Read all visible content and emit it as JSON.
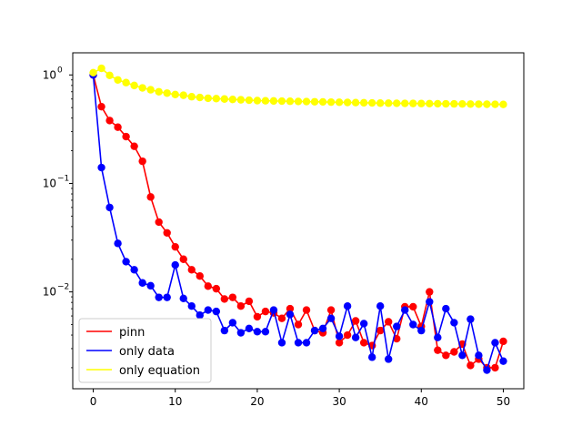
{
  "chart_data": {
    "type": "line",
    "yscale": "log",
    "xlim": [
      -2.5,
      52.5
    ],
    "ylim": [
      0.00128,
      1.6
    ],
    "x_ticks": [
      0,
      10,
      20,
      30,
      40,
      50
    ],
    "y_ticks": [
      0.01,
      0.1,
      1
    ],
    "y_tick_labels": [
      {
        "mantissa": "10",
        "exponent": "−2"
      },
      {
        "mantissa": "10",
        "exponent": "−1"
      },
      {
        "mantissa": "10",
        "exponent": "0"
      }
    ],
    "legend_position": "lower-left",
    "series": [
      {
        "name": "pinn",
        "color": "#ff0000",
        "x": [
          0,
          1,
          2,
          3,
          4,
          5,
          6,
          7,
          8,
          9,
          10,
          11,
          12,
          13,
          14,
          15,
          16,
          17,
          18,
          19,
          20,
          21,
          22,
          23,
          24,
          25,
          26,
          27,
          28,
          29,
          30,
          31,
          32,
          33,
          34,
          35,
          36,
          37,
          38,
          39,
          40,
          41,
          42,
          43,
          44,
          45,
          46,
          47,
          48,
          49,
          50
        ],
        "y": [
          1.0,
          0.51,
          0.38,
          0.33,
          0.27,
          0.22,
          0.16,
          0.075,
          0.044,
          0.035,
          0.026,
          0.02,
          0.016,
          0.014,
          0.0113,
          0.0107,
          0.0086,
          0.0089,
          0.0074,
          0.0082,
          0.0059,
          0.0066,
          0.0064,
          0.0057,
          0.007,
          0.005,
          0.0068,
          0.0044,
          0.0042,
          0.0068,
          0.0034,
          0.004,
          0.0054,
          0.0034,
          0.0032,
          0.0044,
          0.0053,
          0.0037,
          0.0073,
          0.0073,
          0.0048,
          0.01,
          0.0029,
          0.0026,
          0.0028,
          0.0033,
          0.0021,
          0.0024,
          0.002,
          0.002,
          0.0035
        ]
      },
      {
        "name": "only data",
        "color": "#0000ff",
        "x": [
          0,
          1,
          2,
          3,
          4,
          5,
          6,
          7,
          8,
          9,
          10,
          11,
          12,
          13,
          14,
          15,
          16,
          17,
          18,
          19,
          20,
          21,
          22,
          23,
          24,
          25,
          26,
          27,
          28,
          29,
          30,
          31,
          32,
          33,
          34,
          35,
          36,
          37,
          38,
          39,
          40,
          41,
          42,
          43,
          44,
          45,
          46,
          47,
          48,
          49,
          50
        ],
        "y": [
          1.0,
          0.14,
          0.06,
          0.028,
          0.019,
          0.016,
          0.0121,
          0.0114,
          0.0089,
          0.0089,
          0.0177,
          0.0087,
          0.0074,
          0.0061,
          0.0068,
          0.0066,
          0.0044,
          0.0052,
          0.0042,
          0.0046,
          0.0043,
          0.0043,
          0.0068,
          0.0034,
          0.0062,
          0.0034,
          0.0034,
          0.0044,
          0.0046,
          0.0057,
          0.0039,
          0.0074,
          0.0038,
          0.0051,
          0.0025,
          0.0074,
          0.0024,
          0.0048,
          0.0068,
          0.005,
          0.0044,
          0.0081,
          0.0038,
          0.007,
          0.0052,
          0.0026,
          0.0056,
          0.0026,
          0.0019,
          0.0034,
          0.0023
        ]
      },
      {
        "name": "only equation",
        "color": "#ffff00",
        "x": [
          0,
          1,
          2,
          3,
          4,
          5,
          6,
          7,
          8,
          9,
          10,
          11,
          12,
          13,
          14,
          15,
          16,
          17,
          18,
          19,
          20,
          21,
          22,
          23,
          24,
          25,
          26,
          27,
          28,
          29,
          30,
          31,
          32,
          33,
          34,
          35,
          36,
          37,
          38,
          39,
          40,
          41,
          42,
          43,
          44,
          45,
          46,
          47,
          48,
          49,
          50
        ],
        "y": [
          1.05,
          1.15,
          0.99,
          0.9,
          0.85,
          0.8,
          0.76,
          0.73,
          0.7,
          0.68,
          0.66,
          0.65,
          0.63,
          0.62,
          0.61,
          0.605,
          0.6,
          0.595,
          0.59,
          0.585,
          0.58,
          0.578,
          0.576,
          0.574,
          0.572,
          0.57,
          0.568,
          0.566,
          0.564,
          0.562,
          0.56,
          0.558,
          0.556,
          0.554,
          0.552,
          0.55,
          0.549,
          0.548,
          0.547,
          0.546,
          0.545,
          0.544,
          0.543,
          0.542,
          0.541,
          0.54,
          0.539,
          0.538,
          0.537,
          0.536,
          0.535
        ]
      }
    ]
  }
}
